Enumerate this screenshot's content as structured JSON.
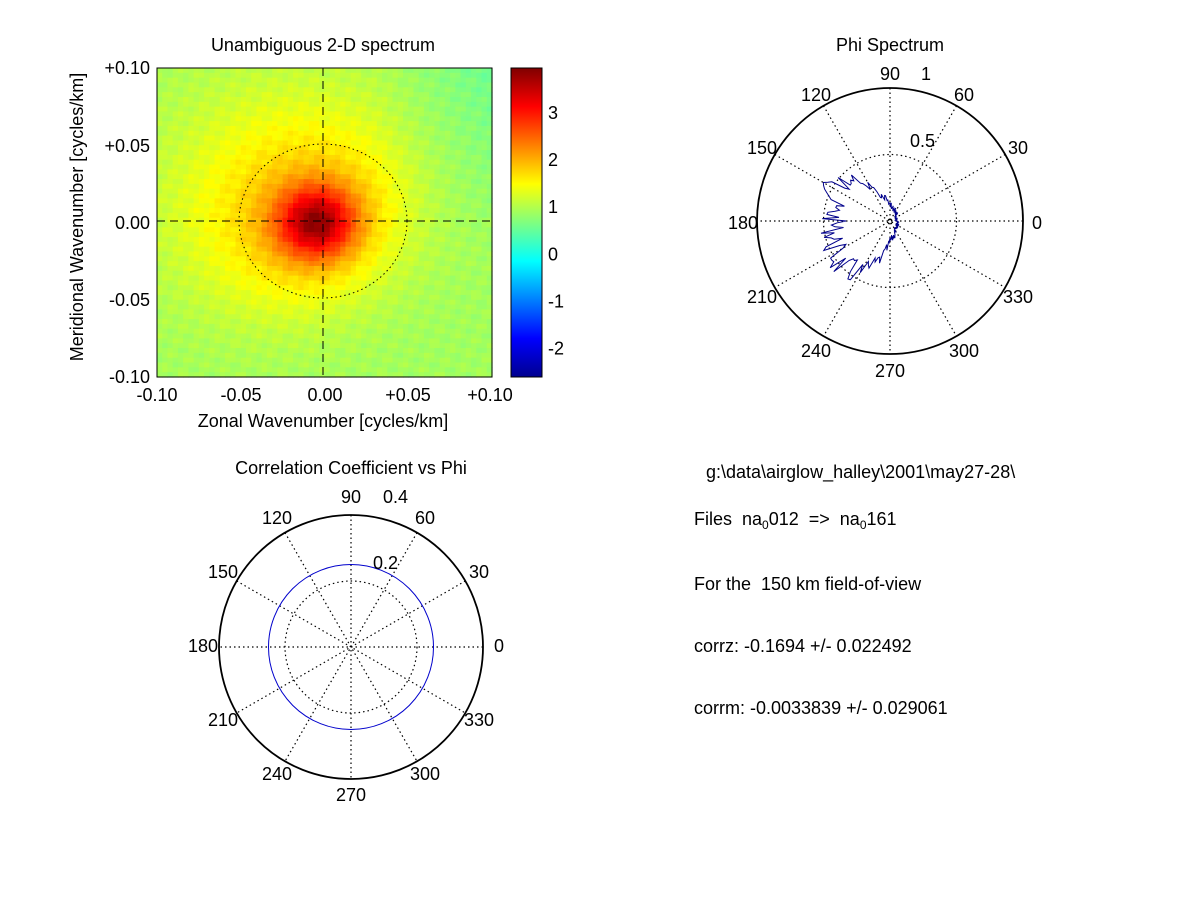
{
  "chart_data": [
    {
      "type": "heatmap",
      "title": "Unambiguous 2-D spectrum",
      "xlabel": "Zonal Wavenumber [cycles/km]",
      "ylabel": "Meridional Wavenumber [cycles/km]",
      "xlim": [
        -0.1,
        0.1
      ],
      "ylim": [
        -0.1,
        0.1
      ],
      "xticks": [
        "-0.10",
        "-0.05",
        "0.00",
        "+0.05",
        "+0.10"
      ],
      "yticks": [
        "+0.10",
        "+0.05",
        "0.00",
        "-0.05",
        "-0.10"
      ],
      "dashed_crosshair_at": [
        -0.005,
        0.0
      ],
      "dotted_circle_radius": 0.05,
      "peak": {
        "x": -0.005,
        "y": 0.0,
        "value": 3.9
      },
      "background_value": 0.9,
      "colorbar": {
        "colormap": "jet",
        "range": [
          -2.6,
          3.95
        ],
        "ticks": [
          "3",
          "2",
          "1",
          "0",
          "-1",
          "-2"
        ],
        "tick_values": [
          3,
          2,
          1,
          0,
          -1,
          -2
        ]
      }
    },
    {
      "type": "polar",
      "title": "Phi Spectrum",
      "rmax": 1,
      "radial_ticks": [
        "0.5",
        "1"
      ],
      "angle_ticks": [
        "90",
        "60",
        "30",
        "0",
        "330",
        "300",
        "270",
        "240",
        "210",
        "180",
        "150",
        "120"
      ],
      "series_color": "#00008b",
      "series_approx": [
        {
          "angle_deg": 0,
          "r": 0.05
        },
        {
          "angle_deg": 30,
          "r": 0.05
        },
        {
          "angle_deg": 60,
          "r": 0.08
        },
        {
          "angle_deg": 90,
          "r": 0.12
        },
        {
          "angle_deg": 120,
          "r": 0.28
        },
        {
          "angle_deg": 135,
          "r": 0.45
        },
        {
          "angle_deg": 150,
          "r": 0.48
        },
        {
          "angle_deg": 165,
          "r": 0.45
        },
        {
          "angle_deg": 180,
          "r": 0.42
        },
        {
          "angle_deg": 195,
          "r": 0.44
        },
        {
          "angle_deg": 210,
          "r": 0.48
        },
        {
          "angle_deg": 225,
          "r": 0.5
        },
        {
          "angle_deg": 240,
          "r": 0.45
        },
        {
          "angle_deg": 255,
          "r": 0.3
        },
        {
          "angle_deg": 270,
          "r": 0.15
        },
        {
          "angle_deg": 300,
          "r": 0.08
        },
        {
          "angle_deg": 330,
          "r": 0.06
        }
      ]
    },
    {
      "type": "polar",
      "title": "Correlation Coefficient vs Phi",
      "rmax": 0.4,
      "radial_ticks": [
        "0.2",
        "0.4"
      ],
      "angle_ticks": [
        "90",
        "60",
        "30",
        "0",
        "330",
        "300",
        "270",
        "240",
        "210",
        "180",
        "150",
        "120"
      ],
      "series_color": "#0000cc",
      "series_description": "circle of constant radius",
      "series_radius": 0.25
    }
  ],
  "info": {
    "path": "g:\\data\\airglow_halley\\2001\\may27-28\\",
    "files_prefix": "Files  na",
    "files_sub1": "0",
    "files_mid": "012  =>  na",
    "files_sub2": "0",
    "files_end": "161",
    "fov": "For the  150 km field-of-view",
    "corrz": "corrz: -0.1694 +/- 0.022492",
    "corrm": "corrm: -0.0033839 +/- 0.029061"
  }
}
